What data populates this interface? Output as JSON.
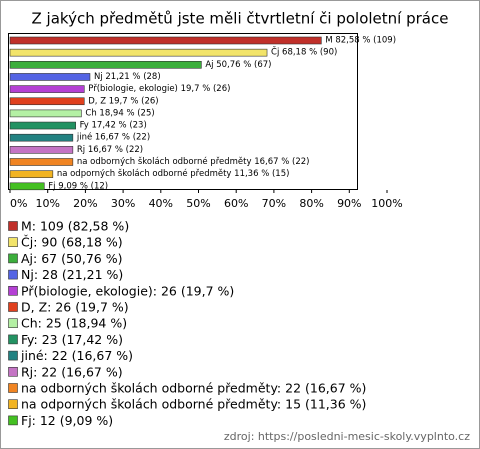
{
  "chart_data": {
    "type": "bar",
    "orientation": "horizontal",
    "title": "Z jakých předmětů jste měli čtvrtletní či pololetní práce",
    "values": [
      82.58,
      68.18,
      50.76,
      21.21,
      19.7,
      19.7,
      18.94,
      17.42,
      16.67,
      16.67,
      16.67,
      11.36,
      9.09
    ],
    "value_labels": [
      "M 82,58 % (109)",
      "Čj 68,18 % (90)",
      "Aj 50,76 % (67)",
      "Nj 21,21 % (28)",
      "Př(biologie, ekologie) 19,7 % (26)",
      "D, Z 19,7 % (26)",
      "Ch 18,94 % (25)",
      "Fy 17,42 % (23)",
      "jiné 16,67 % (22)",
      "Rj 16,67 % (22)",
      "na odborných školách odborné předměty 16,67 % (22)",
      "na odporných školách odborné předměty 11,36 % (15)",
      "Fj 9,09 % (12)"
    ],
    "legend_labels": [
      "M: 109 (82,58 %)",
      "Čj: 90 (68,18 %)",
      "Aj: 67 (50,76 %)",
      "Nj: 28 (21,21 %)",
      "Př(biologie, ekologie): 26 (19,7 %)",
      "D, Z: 26 (19,7 %)",
      "Ch: 25 (18,94 %)",
      "Fy: 23 (17,42 %)",
      "jiné: 22 (16,67 %)",
      "Rj: 22 (16,67 %)",
      "na odborných školách odborné předměty: 22 (16,67 %)",
      "na odporných školách odborné předměty: 15 (11,36 %)",
      "Fj: 12 (9,09 %)"
    ],
    "colors": [
      "#c0302a",
      "#f2e46a",
      "#3cae3c",
      "#5464e4",
      "#b440d4",
      "#e0401e",
      "#b4f0a4",
      "#229262",
      "#228282",
      "#c474c4",
      "#f08422",
      "#f2b422",
      "#44c022"
    ],
    "xlim": [
      0,
      100
    ],
    "xticks": [
      {
        "value": 0,
        "label": "0%"
      },
      {
        "value": 10,
        "label": "10%"
      },
      {
        "value": 20,
        "label": "20%"
      },
      {
        "value": 30,
        "label": "30%"
      },
      {
        "value": 40,
        "label": "40%"
      },
      {
        "value": 50,
        "label": "50%"
      },
      {
        "value": 60,
        "label": "60%"
      },
      {
        "value": 70,
        "label": "70%"
      },
      {
        "value": 80,
        "label": "80%"
      },
      {
        "value": 90,
        "label": "90%"
      },
      {
        "value": 100,
        "label": "100%"
      }
    ],
    "source": "zdroj: https://posledni-mesic-skoly.vyplnto.cz"
  }
}
